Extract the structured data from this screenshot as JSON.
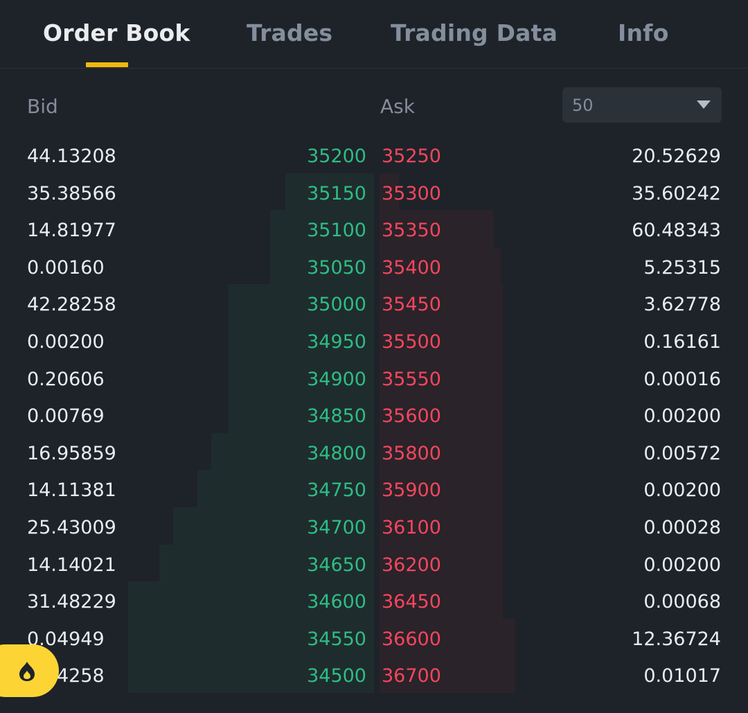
{
  "tabs": [
    {
      "label": "Order Book",
      "active": true
    },
    {
      "label": "Trades",
      "active": false
    },
    {
      "label": "Trading Data",
      "active": false
    },
    {
      "label": "Info",
      "active": false
    }
  ],
  "header": {
    "bid_label": "Bid",
    "ask_label": "Ask",
    "depth_select_value": "50"
  },
  "colors": {
    "accent": "#f0b90b",
    "bid_green": "#2ebd85",
    "ask_red": "#f6465d",
    "background": "#1e2329"
  },
  "orderbook": [
    {
      "bid_qty": "44.13208",
      "bid_price": "35200",
      "ask_price": "35250",
      "ask_qty": "20.52629"
    },
    {
      "bid_qty": "35.38566",
      "bid_price": "35150",
      "ask_price": "35300",
      "ask_qty": "35.60242"
    },
    {
      "bid_qty": "14.81977",
      "bid_price": "35100",
      "ask_price": "35350",
      "ask_qty": "60.48343"
    },
    {
      "bid_qty": "0.00160",
      "bid_price": "35050",
      "ask_price": "35400",
      "ask_qty": "5.25315"
    },
    {
      "bid_qty": "42.28258",
      "bid_price": "35000",
      "ask_price": "35450",
      "ask_qty": "3.62778"
    },
    {
      "bid_qty": "0.00200",
      "bid_price": "34950",
      "ask_price": "35500",
      "ask_qty": "0.16161"
    },
    {
      "bid_qty": "0.20606",
      "bid_price": "34900",
      "ask_price": "35550",
      "ask_qty": "0.00016"
    },
    {
      "bid_qty": "0.00769",
      "bid_price": "34850",
      "ask_price": "35600",
      "ask_qty": "0.00200"
    },
    {
      "bid_qty": "16.95859",
      "bid_price": "34800",
      "ask_price": "35800",
      "ask_qty": "0.00572"
    },
    {
      "bid_qty": "14.11381",
      "bid_price": "34750",
      "ask_price": "35900",
      "ask_qty": "0.00200"
    },
    {
      "bid_qty": "25.43009",
      "bid_price": "34700",
      "ask_price": "36100",
      "ask_qty": "0.00028"
    },
    {
      "bid_qty": "14.14021",
      "bid_price": "34650",
      "ask_price": "36200",
      "ask_qty": "0.00200"
    },
    {
      "bid_qty": "31.48229",
      "bid_price": "34600",
      "ask_price": "36450",
      "ask_qty": "0.00068"
    },
    {
      "bid_qty": "0.04949",
      "bid_price": "34550",
      "ask_price": "36600",
      "ask_qty": "12.36724"
    },
    {
      "bid_qty": "0.04258",
      "bid_price": "34500",
      "ask_price": "36700",
      "ask_qty": "0.01017"
    }
  ],
  "floating_button": {
    "icon": "flame-icon"
  }
}
